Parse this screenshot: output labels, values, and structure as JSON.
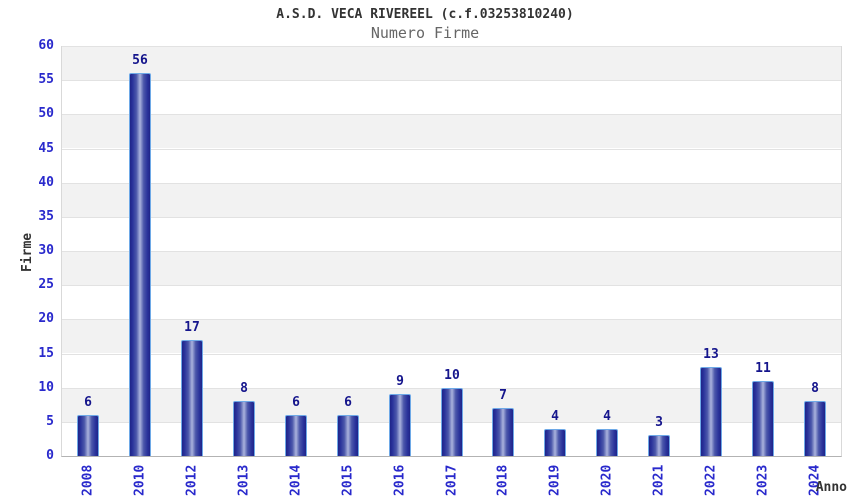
{
  "page": {
    "title": "A.S.D. VECA RIVEREEL (c.f.03253810240)",
    "subtitle": "Numero Firme"
  },
  "chart_data": {
    "type": "bar",
    "title": "A.S.D. VECA RIVEREEL (c.f.03253810240)",
    "subtitle": "Numero Firme",
    "xlabel": "Anno",
    "ylabel": "Firme",
    "categories": [
      "2008",
      "2010",
      "2012",
      "2013",
      "2014",
      "2015",
      "2016",
      "2017",
      "2018",
      "2019",
      "2020",
      "2021",
      "2022",
      "2023",
      "2024"
    ],
    "values": [
      6,
      56,
      17,
      8,
      6,
      6,
      9,
      10,
      7,
      4,
      4,
      3,
      13,
      11,
      8
    ],
    "ylim": [
      0,
      60
    ],
    "ytick_step": 5,
    "yticks": [
      0,
      5,
      10,
      15,
      20,
      25,
      30,
      35,
      40,
      45,
      50,
      55,
      60
    ],
    "grid": "horizontal gridlines with alternating shaded bands",
    "legend": "none",
    "colors": {
      "band_shade": "#f2f2f2",
      "band_plain": "#ffffff",
      "gridline": "#e2e2e2",
      "axis_line": "#b3b3b3",
      "plot_border": "#d9d9d9",
      "bar_edge_dark": "#1f2489",
      "bar_mid": "#4c58ab",
      "bar_center_light": "#aab3dd",
      "bar_outline": "#6ea9e7",
      "value_label": "#15158c",
      "tick_label": "#2929cc",
      "title": "#333333",
      "subtitle": "#666666",
      "axis_title": "#333333"
    }
  }
}
